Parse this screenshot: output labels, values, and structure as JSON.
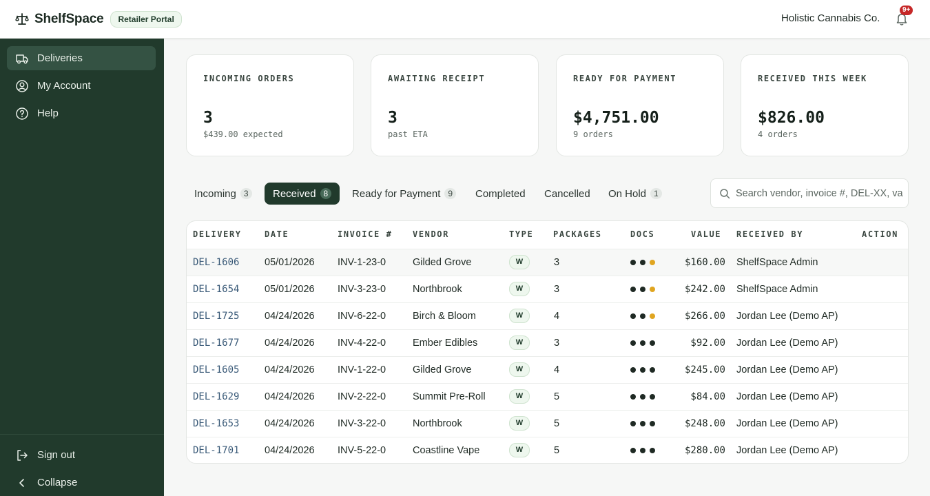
{
  "header": {
    "brand": "ShelfSpace",
    "portal_badge": "Retailer Portal",
    "org_name": "Holistic Cannabis Co.",
    "notifications_badge": "9+"
  },
  "sidebar": {
    "items": [
      {
        "label": "Deliveries",
        "icon": "truck-icon",
        "active": true
      },
      {
        "label": "My Account",
        "icon": "user-circle-icon"
      },
      {
        "label": "Help",
        "icon": "question-circle-icon"
      }
    ],
    "footer": [
      {
        "label": "Sign out",
        "icon": "sign-out-icon"
      },
      {
        "label": "Collapse",
        "icon": "chevron-left-icon"
      }
    ]
  },
  "stats": [
    {
      "label": "INCOMING ORDERS",
      "value": "3",
      "sub": "$439.00 expected"
    },
    {
      "label": "AWAITING RECEIPT",
      "value": "3",
      "sub": "past ETA"
    },
    {
      "label": "READY FOR PAYMENT",
      "value": "$4,751.00",
      "sub": "9 orders"
    },
    {
      "label": "RECEIVED THIS WEEK",
      "value": "$826.00",
      "sub": "4 orders"
    }
  ],
  "tabs": [
    {
      "label": "Incoming",
      "count": "3"
    },
    {
      "label": "Received",
      "count": "8",
      "active": true
    },
    {
      "label": "Ready for Payment",
      "count": "9"
    },
    {
      "label": "Completed",
      "count": ""
    },
    {
      "label": "Cancelled",
      "count": ""
    },
    {
      "label": "On Hold",
      "count": "1"
    }
  ],
  "search": {
    "placeholder": "Search vendor, invoice #, DEL-XX, va"
  },
  "table": {
    "columns": [
      "DELIVERY",
      "DATE",
      "INVOICE #",
      "VENDOR",
      "TYPE",
      "PACKAGES",
      "DOCS",
      "VALUE",
      "RECEIVED BY",
      "ACTION"
    ],
    "rows": [
      {
        "delivery": "DEL-1606",
        "date": "05/01/2026",
        "invoice": "INV-1-23-0",
        "vendor": "Gilded Grove",
        "type": "W",
        "packages": "3",
        "docs": [
          "ok",
          "ok",
          "warn"
        ],
        "value": "$160.00",
        "received_by": "ShelfSpace Admin"
      },
      {
        "delivery": "DEL-1654",
        "date": "05/01/2026",
        "invoice": "INV-3-23-0",
        "vendor": "Northbrook",
        "type": "W",
        "packages": "3",
        "docs": [
          "ok",
          "ok",
          "warn"
        ],
        "value": "$242.00",
        "received_by": "ShelfSpace Admin"
      },
      {
        "delivery": "DEL-1725",
        "date": "04/24/2026",
        "invoice": "INV-6-22-0",
        "vendor": "Birch & Bloom",
        "type": "W",
        "packages": "4",
        "docs": [
          "ok",
          "ok",
          "warn"
        ],
        "value": "$266.00",
        "received_by": "Jordan Lee (Demo AP)"
      },
      {
        "delivery": "DEL-1677",
        "date": "04/24/2026",
        "invoice": "INV-4-22-0",
        "vendor": "Ember Edibles",
        "type": "W",
        "packages": "3",
        "docs": [
          "ok",
          "ok",
          "ok"
        ],
        "value": "$92.00",
        "received_by": "Jordan Lee (Demo AP)"
      },
      {
        "delivery": "DEL-1605",
        "date": "04/24/2026",
        "invoice": "INV-1-22-0",
        "vendor": "Gilded Grove",
        "type": "W",
        "packages": "4",
        "docs": [
          "ok",
          "ok",
          "ok"
        ],
        "value": "$245.00",
        "received_by": "Jordan Lee (Demo AP)"
      },
      {
        "delivery": "DEL-1629",
        "date": "04/24/2026",
        "invoice": "INV-2-22-0",
        "vendor": "Summit Pre-Roll",
        "type": "W",
        "packages": "5",
        "docs": [
          "ok",
          "ok",
          "ok"
        ],
        "value": "$84.00",
        "received_by": "Jordan Lee (Demo AP)"
      },
      {
        "delivery": "DEL-1653",
        "date": "04/24/2026",
        "invoice": "INV-3-22-0",
        "vendor": "Northbrook",
        "type": "W",
        "packages": "5",
        "docs": [
          "ok",
          "ok",
          "ok"
        ],
        "value": "$248.00",
        "received_by": "Jordan Lee (Demo AP)"
      },
      {
        "delivery": "DEL-1701",
        "date": "04/24/2026",
        "invoice": "INV-5-22-0",
        "vendor": "Coastline Vape",
        "type": "W",
        "packages": "5",
        "docs": [
          "ok",
          "ok",
          "ok"
        ],
        "value": "$280.00",
        "received_by": "Jordan Lee (Demo AP)"
      }
    ]
  },
  "colors": {
    "sidebar": "#213a2c",
    "accent": "#213a2c",
    "warn_dot": "#e0a520",
    "notification": "#c62828"
  }
}
